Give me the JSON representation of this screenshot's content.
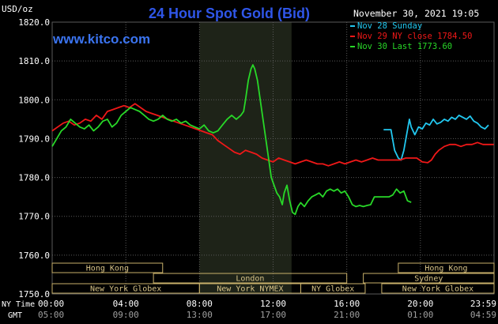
{
  "header": {
    "title": "24 Hour Spot Gold (Bid)",
    "timestamp": "November 30, 2021 19:05",
    "watermark": "www.kitco.com",
    "unit_label": "USD/oz"
  },
  "colors": {
    "background": "#000000",
    "grid": "#5a5a5a",
    "title": "#2f56e8",
    "watermark": "#3b74f0",
    "axis_text": "#ffffff",
    "highlight": "#1e2318",
    "session_border": "#c8b06a",
    "session_text": "#d8c488"
  },
  "chart_data": {
    "type": "line",
    "title": "24 Hour Spot Gold (Bid)",
    "ylabel": "USD/oz",
    "ylim": [
      1750,
      1820
    ],
    "y_ticks": [
      "1820.0",
      "1810.0",
      "1800.0",
      "1790.0",
      "1780.0",
      "1770.0",
      "1760.0",
      "1750.0"
    ],
    "x_range_hours": [
      0,
      24
    ],
    "highlight_range_hours": [
      8,
      13
    ],
    "grid": true,
    "legend_position": "top-right",
    "x_ticks_ny": [
      "00:00",
      "04:00",
      "08:00",
      "12:00",
      "16:00",
      "20:00",
      "23:59"
    ],
    "x_ticks_gmt": [
      "05:00",
      "09:00",
      "13:00",
      "17:00",
      "21:00",
      "01:00",
      "04:59"
    ],
    "x_row_labels": [
      "NY Time",
      "GMT"
    ],
    "legend": [
      "Nov 28 Sunday",
      "Nov 29 NY close 1784.50",
      "Nov 30 Last 1773.60"
    ],
    "series": [
      {
        "name": "Nov 28 Sunday",
        "color": "#22c8f0",
        "points": [
          [
            18.0,
            1792.3
          ],
          [
            18.4,
            1792.3
          ],
          [
            18.45,
            1791.0
          ],
          [
            18.6,
            1787.0
          ],
          [
            18.8,
            1785.0
          ],
          [
            18.95,
            1784.5
          ],
          [
            19.1,
            1787.0
          ],
          [
            19.25,
            1791.0
          ],
          [
            19.4,
            1795.0
          ],
          [
            19.5,
            1793.0
          ],
          [
            19.7,
            1791.0
          ],
          [
            19.9,
            1793.0
          ],
          [
            20.1,
            1792.5
          ],
          [
            20.3,
            1794.0
          ],
          [
            20.5,
            1793.5
          ],
          [
            20.7,
            1795.0
          ],
          [
            20.9,
            1793.8
          ],
          [
            21.1,
            1794.2
          ],
          [
            21.3,
            1795.0
          ],
          [
            21.5,
            1794.5
          ],
          [
            21.7,
            1795.5
          ],
          [
            21.9,
            1795.0
          ],
          [
            22.1,
            1796.0
          ],
          [
            22.3,
            1795.5
          ],
          [
            22.5,
            1795.0
          ],
          [
            22.7,
            1795.8
          ],
          [
            22.9,
            1794.5
          ],
          [
            23.1,
            1794.0
          ],
          [
            23.3,
            1793.0
          ],
          [
            23.5,
            1792.5
          ],
          [
            23.7,
            1793.5
          ]
        ]
      },
      {
        "name": "Nov 29 NY close 1784.50",
        "color": "#f01818",
        "points": [
          [
            0.0,
            1792.0
          ],
          [
            0.3,
            1793.0
          ],
          [
            0.6,
            1794.0
          ],
          [
            0.9,
            1794.5
          ],
          [
            1.2,
            1793.5
          ],
          [
            1.5,
            1794.0
          ],
          [
            1.8,
            1795.0
          ],
          [
            2.1,
            1794.5
          ],
          [
            2.4,
            1796.0
          ],
          [
            2.7,
            1795.0
          ],
          [
            3.0,
            1797.0
          ],
          [
            3.3,
            1797.5
          ],
          [
            3.6,
            1798.0
          ],
          [
            3.9,
            1798.5
          ],
          [
            4.2,
            1798.0
          ],
          [
            4.5,
            1799.0
          ],
          [
            4.8,
            1798.0
          ],
          [
            5.1,
            1797.0
          ],
          [
            5.4,
            1796.5
          ],
          [
            5.7,
            1796.0
          ],
          [
            6.0,
            1795.5
          ],
          [
            6.3,
            1795.0
          ],
          [
            6.6,
            1794.5
          ],
          [
            6.9,
            1794.0
          ],
          [
            7.2,
            1793.5
          ],
          [
            7.5,
            1793.0
          ],
          [
            7.8,
            1792.5
          ],
          [
            8.1,
            1792.0
          ],
          [
            8.4,
            1791.5
          ],
          [
            8.7,
            1791.0
          ],
          [
            9.0,
            1789.5
          ],
          [
            9.3,
            1788.5
          ],
          [
            9.6,
            1787.5
          ],
          [
            9.9,
            1786.5
          ],
          [
            10.2,
            1786.0
          ],
          [
            10.5,
            1787.0
          ],
          [
            10.8,
            1786.5
          ],
          [
            11.1,
            1786.0
          ],
          [
            11.4,
            1785.0
          ],
          [
            11.7,
            1784.5
          ],
          [
            12.0,
            1784.0
          ],
          [
            12.3,
            1785.0
          ],
          [
            12.6,
            1784.5
          ],
          [
            12.9,
            1784.0
          ],
          [
            13.2,
            1783.5
          ],
          [
            13.5,
            1784.0
          ],
          [
            13.8,
            1784.5
          ],
          [
            14.1,
            1784.0
          ],
          [
            14.4,
            1783.5
          ],
          [
            14.7,
            1783.5
          ],
          [
            15.0,
            1783.0
          ],
          [
            15.3,
            1783.5
          ],
          [
            15.6,
            1784.0
          ],
          [
            15.9,
            1783.5
          ],
          [
            16.2,
            1784.0
          ],
          [
            16.5,
            1784.5
          ],
          [
            16.8,
            1784.0
          ],
          [
            17.1,
            1784.5
          ],
          [
            17.4,
            1785.0
          ],
          [
            17.7,
            1784.5
          ],
          [
            18.0,
            1784.5
          ],
          [
            18.3,
            1784.5
          ],
          [
            18.6,
            1784.5
          ],
          [
            18.9,
            1784.5
          ],
          [
            19.2,
            1785.0
          ],
          [
            19.5,
            1785.0
          ],
          [
            19.8,
            1785.0
          ],
          [
            20.1,
            1784.0
          ],
          [
            20.4,
            1783.8
          ],
          [
            20.6,
            1784.5
          ],
          [
            20.8,
            1786.0
          ],
          [
            21.0,
            1787.0
          ],
          [
            21.3,
            1788.0
          ],
          [
            21.6,
            1788.5
          ],
          [
            21.9,
            1788.5
          ],
          [
            22.2,
            1788.0
          ],
          [
            22.5,
            1788.5
          ],
          [
            22.8,
            1788.5
          ],
          [
            23.1,
            1789.0
          ],
          [
            23.4,
            1788.5
          ],
          [
            23.7,
            1788.5
          ],
          [
            23.99,
            1788.5
          ]
        ]
      },
      {
        "name": "Nov 30 Last 1773.60",
        "color": "#28d828",
        "points": [
          [
            0.0,
            1788.0
          ],
          [
            0.25,
            1790.0
          ],
          [
            0.5,
            1792.0
          ],
          [
            0.75,
            1793.0
          ],
          [
            1.0,
            1795.0
          ],
          [
            1.25,
            1794.0
          ],
          [
            1.5,
            1793.0
          ],
          [
            1.75,
            1792.5
          ],
          [
            2.0,
            1793.5
          ],
          [
            2.25,
            1792.0
          ],
          [
            2.5,
            1793.0
          ],
          [
            2.75,
            1794.5
          ],
          [
            3.0,
            1795.0
          ],
          [
            3.25,
            1793.0
          ],
          [
            3.5,
            1794.0
          ],
          [
            3.75,
            1796.0
          ],
          [
            4.0,
            1797.0
          ],
          [
            4.25,
            1798.0
          ],
          [
            4.5,
            1797.5
          ],
          [
            4.75,
            1797.0
          ],
          [
            5.0,
            1796.0
          ],
          [
            5.25,
            1795.0
          ],
          [
            5.5,
            1794.5
          ],
          [
            5.75,
            1795.0
          ],
          [
            6.0,
            1796.0
          ],
          [
            6.25,
            1795.0
          ],
          [
            6.5,
            1794.5
          ],
          [
            6.75,
            1795.0
          ],
          [
            7.0,
            1794.0
          ],
          [
            7.25,
            1794.5
          ],
          [
            7.5,
            1793.5
          ],
          [
            7.75,
            1793.0
          ],
          [
            8.0,
            1792.5
          ],
          [
            8.25,
            1793.5
          ],
          [
            8.5,
            1792.0
          ],
          [
            8.75,
            1791.5
          ],
          [
            9.0,
            1792.0
          ],
          [
            9.25,
            1793.5
          ],
          [
            9.5,
            1795.0
          ],
          [
            9.75,
            1796.0
          ],
          [
            10.0,
            1795.0
          ],
          [
            10.25,
            1796.0
          ],
          [
            10.4,
            1797.0
          ],
          [
            10.5,
            1800.0
          ],
          [
            10.65,
            1805.0
          ],
          [
            10.8,
            1808.0
          ],
          [
            10.9,
            1809.0
          ],
          [
            11.0,
            1808.0
          ],
          [
            11.15,
            1805.0
          ],
          [
            11.3,
            1800.0
          ],
          [
            11.45,
            1795.0
          ],
          [
            11.6,
            1790.0
          ],
          [
            11.75,
            1785.0
          ],
          [
            11.9,
            1780.0
          ],
          [
            12.05,
            1778.0
          ],
          [
            12.2,
            1776.0
          ],
          [
            12.35,
            1775.0
          ],
          [
            12.5,
            1773.0
          ],
          [
            12.6,
            1776.0
          ],
          [
            12.75,
            1778.0
          ],
          [
            12.9,
            1774.0
          ],
          [
            13.05,
            1771.0
          ],
          [
            13.2,
            1770.5
          ],
          [
            13.35,
            1772.5
          ],
          [
            13.5,
            1773.5
          ],
          [
            13.7,
            1772.5
          ],
          [
            13.9,
            1774.0
          ],
          [
            14.1,
            1775.0
          ],
          [
            14.3,
            1775.5
          ],
          [
            14.5,
            1776.0
          ],
          [
            14.7,
            1775.0
          ],
          [
            14.9,
            1776.5
          ],
          [
            15.1,
            1777.0
          ],
          [
            15.3,
            1776.5
          ],
          [
            15.5,
            1777.0
          ],
          [
            15.7,
            1776.0
          ],
          [
            15.9,
            1776.5
          ],
          [
            16.1,
            1775.0
          ],
          [
            16.3,
            1773.0
          ],
          [
            16.5,
            1772.5
          ],
          [
            16.7,
            1772.8
          ],
          [
            16.9,
            1772.5
          ],
          [
            17.1,
            1772.8
          ],
          [
            17.3,
            1773.0
          ],
          [
            17.5,
            1775.0
          ],
          [
            17.7,
            1775.0
          ],
          [
            17.9,
            1775.0
          ],
          [
            18.1,
            1775.0
          ],
          [
            18.3,
            1775.0
          ],
          [
            18.5,
            1775.5
          ],
          [
            18.7,
            1777.0
          ],
          [
            18.9,
            1776.0
          ],
          [
            19.1,
            1776.5
          ],
          [
            19.3,
            1774.0
          ],
          [
            19.5,
            1773.6
          ]
        ]
      }
    ],
    "sessions": [
      {
        "name": "Hong Kong",
        "start": 0,
        "end": 6,
        "row": 0
      },
      {
        "name": "London",
        "start": 5.5,
        "end": 16,
        "row": 1
      },
      {
        "name": "New York Globex",
        "start": 0,
        "end": 8,
        "row": 2
      },
      {
        "name": "New York NYMEX",
        "start": 8,
        "end": 13.5,
        "row": 2
      },
      {
        "name": "NY Globex",
        "start": 13.5,
        "end": 17,
        "row": 2
      },
      {
        "name": "Hong Kong",
        "start": 18.8,
        "end": 24,
        "row": 0
      },
      {
        "name": "Sydney",
        "start": 16.9,
        "end": 24,
        "row": 1
      },
      {
        "name": "New York Globex",
        "start": 17.9,
        "end": 24,
        "row": 2
      }
    ]
  }
}
